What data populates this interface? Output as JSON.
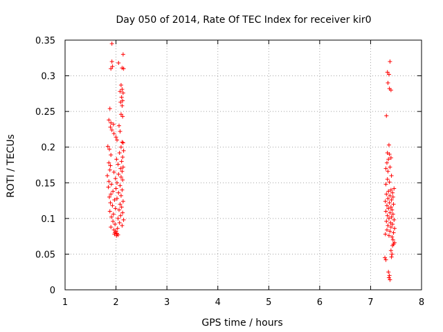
{
  "chart_data": {
    "type": "scatter",
    "title": "Day 050 of 2014, Rate Of TEC Index for receiver kir0",
    "xlabel": "GPS time / hours",
    "ylabel": "ROTI / TECUs",
    "xlim": [
      1,
      8
    ],
    "ylim": [
      0,
      0.35
    ],
    "x_ticks": [
      1,
      2,
      3,
      4,
      5,
      6,
      7,
      8
    ],
    "y_ticks": [
      0,
      0.05,
      0.1,
      0.15,
      0.2,
      0.25,
      0.3,
      0.35
    ],
    "x_tick_labels": [
      "1",
      "2",
      "3",
      "4",
      "5",
      "6",
      "7",
      "8"
    ],
    "y_tick_labels": [
      "0",
      "0.05",
      "0.1",
      "0.15",
      "0.2",
      "0.25",
      "0.3",
      "0.35"
    ],
    "grid": true,
    "marker": "+",
    "marker_color": "#ff0000",
    "series": [
      {
        "name": "ROTI",
        "points": [
          [
            1.92,
            0.345
          ],
          [
            2.14,
            0.33
          ],
          [
            1.92,
            0.32
          ],
          [
            2.05,
            0.318
          ],
          [
            1.93,
            0.313
          ],
          [
            1.9,
            0.31
          ],
          [
            2.12,
            0.311
          ],
          [
            2.15,
            0.31
          ],
          [
            2.1,
            0.287
          ],
          [
            2.12,
            0.281
          ],
          [
            2.08,
            0.278
          ],
          [
            2.14,
            0.276
          ],
          [
            2.11,
            0.27
          ],
          [
            2.13,
            0.265
          ],
          [
            2.09,
            0.263
          ],
          [
            2.12,
            0.258
          ],
          [
            1.88,
            0.254
          ],
          [
            2.1,
            0.246
          ],
          [
            2.13,
            0.243
          ],
          [
            1.86,
            0.238
          ],
          [
            1.9,
            0.234
          ],
          [
            1.95,
            0.232
          ],
          [
            2.06,
            0.23
          ],
          [
            1.89,
            0.228
          ],
          [
            1.92,
            0.224
          ],
          [
            2.08,
            0.222
          ],
          [
            1.96,
            0.219
          ],
          [
            2.0,
            0.214
          ],
          [
            2.02,
            0.21
          ],
          [
            2.12,
            0.207
          ],
          [
            2.14,
            0.206
          ],
          [
            1.84,
            0.201
          ],
          [
            2.1,
            0.2
          ],
          [
            1.87,
            0.197
          ],
          [
            2.15,
            0.195
          ],
          [
            2.07,
            0.192
          ],
          [
            1.9,
            0.189
          ],
          [
            2.13,
            0.186
          ],
          [
            2.01,
            0.183
          ],
          [
            2.11,
            0.18
          ],
          [
            1.86,
            0.178
          ],
          [
            2.04,
            0.176
          ],
          [
            1.89,
            0.174
          ],
          [
            2.14,
            0.172
          ],
          [
            2.09,
            0.17
          ],
          [
            1.88,
            0.168
          ],
          [
            2.12,
            0.166
          ],
          [
            1.96,
            0.165
          ],
          [
            2.05,
            0.162
          ],
          [
            1.83,
            0.16
          ],
          [
            2.1,
            0.158
          ],
          [
            1.99,
            0.156
          ],
          [
            2.13,
            0.154
          ],
          [
            1.86,
            0.152
          ],
          [
            2.02,
            0.15
          ],
          [
            1.91,
            0.148
          ],
          [
            2.08,
            0.146
          ],
          [
            1.85,
            0.144
          ],
          [
            2.0,
            0.142
          ],
          [
            2.12,
            0.14
          ],
          [
            1.94,
            0.138
          ],
          [
            2.05,
            0.136
          ],
          [
            1.9,
            0.134
          ],
          [
            2.1,
            0.132
          ],
          [
            1.87,
            0.13
          ],
          [
            2.02,
            0.128
          ],
          [
            1.97,
            0.126
          ],
          [
            2.14,
            0.124
          ],
          [
            1.89,
            0.122
          ],
          [
            2.08,
            0.12
          ],
          [
            1.93,
            0.118
          ],
          [
            2.11,
            0.116
          ],
          [
            1.99,
            0.114
          ],
          [
            2.06,
            0.112
          ],
          [
            1.88,
            0.11
          ],
          [
            2.13,
            0.108
          ],
          [
            1.95,
            0.106
          ],
          [
            2.09,
            0.104
          ],
          [
            1.91,
            0.102
          ],
          [
            2.04,
            0.1
          ],
          [
            2.15,
            0.098
          ],
          [
            1.94,
            0.096
          ],
          [
            2.07,
            0.094
          ],
          [
            1.98,
            0.092
          ],
          [
            2.12,
            0.09
          ],
          [
            1.9,
            0.088
          ],
          [
            2.03,
            0.086
          ],
          [
            1.96,
            0.084
          ],
          [
            2.0,
            0.082
          ],
          [
            1.98,
            0.08
          ],
          [
            2.02,
            0.079
          ],
          [
            1.97,
            0.078
          ],
          [
            2.04,
            0.077
          ],
          [
            2.01,
            0.076
          ],
          [
            7.38,
            0.32
          ],
          [
            7.33,
            0.305
          ],
          [
            7.36,
            0.302
          ],
          [
            7.34,
            0.29
          ],
          [
            7.37,
            0.282
          ],
          [
            7.4,
            0.28
          ],
          [
            7.31,
            0.244
          ],
          [
            7.36,
            0.203
          ],
          [
            7.33,
            0.192
          ],
          [
            7.37,
            0.19
          ],
          [
            7.4,
            0.185
          ],
          [
            7.35,
            0.183
          ],
          [
            7.32,
            0.178
          ],
          [
            7.38,
            0.172
          ],
          [
            7.3,
            0.17
          ],
          [
            7.34,
            0.166
          ],
          [
            7.41,
            0.16
          ],
          [
            7.33,
            0.155
          ],
          [
            7.37,
            0.151
          ],
          [
            7.3,
            0.148
          ],
          [
            7.46,
            0.142
          ],
          [
            7.4,
            0.14
          ],
          [
            7.35,
            0.138
          ],
          [
            7.43,
            0.136
          ],
          [
            7.31,
            0.134
          ],
          [
            7.38,
            0.132
          ],
          [
            7.44,
            0.13
          ],
          [
            7.34,
            0.128
          ],
          [
            7.41,
            0.126
          ],
          [
            7.29,
            0.124
          ],
          [
            7.37,
            0.122
          ],
          [
            7.45,
            0.12
          ],
          [
            7.32,
            0.118
          ],
          [
            7.4,
            0.116
          ],
          [
            7.35,
            0.114
          ],
          [
            7.42,
            0.112
          ],
          [
            7.3,
            0.11
          ],
          [
            7.38,
            0.108
          ],
          [
            7.44,
            0.106
          ],
          [
            7.33,
            0.104
          ],
          [
            7.41,
            0.102
          ],
          [
            7.36,
            0.1
          ],
          [
            7.46,
            0.098
          ],
          [
            7.31,
            0.096
          ],
          [
            7.39,
            0.094
          ],
          [
            7.43,
            0.092
          ],
          [
            7.34,
            0.09
          ],
          [
            7.4,
            0.088
          ],
          [
            7.47,
            0.086
          ],
          [
            7.32,
            0.084
          ],
          [
            7.38,
            0.082
          ],
          [
            7.45,
            0.08
          ],
          [
            7.29,
            0.078
          ],
          [
            7.36,
            0.076
          ],
          [
            7.42,
            0.074
          ],
          [
            7.44,
            0.07
          ],
          [
            7.47,
            0.066
          ],
          [
            7.45,
            0.064
          ],
          [
            7.43,
            0.062
          ],
          [
            7.4,
            0.055
          ],
          [
            7.42,
            0.05
          ],
          [
            7.41,
            0.046
          ],
          [
            7.28,
            0.045
          ],
          [
            7.3,
            0.042
          ],
          [
            7.35,
            0.025
          ],
          [
            7.37,
            0.02
          ],
          [
            7.36,
            0.017
          ],
          [
            7.38,
            0.014
          ]
        ]
      }
    ]
  }
}
